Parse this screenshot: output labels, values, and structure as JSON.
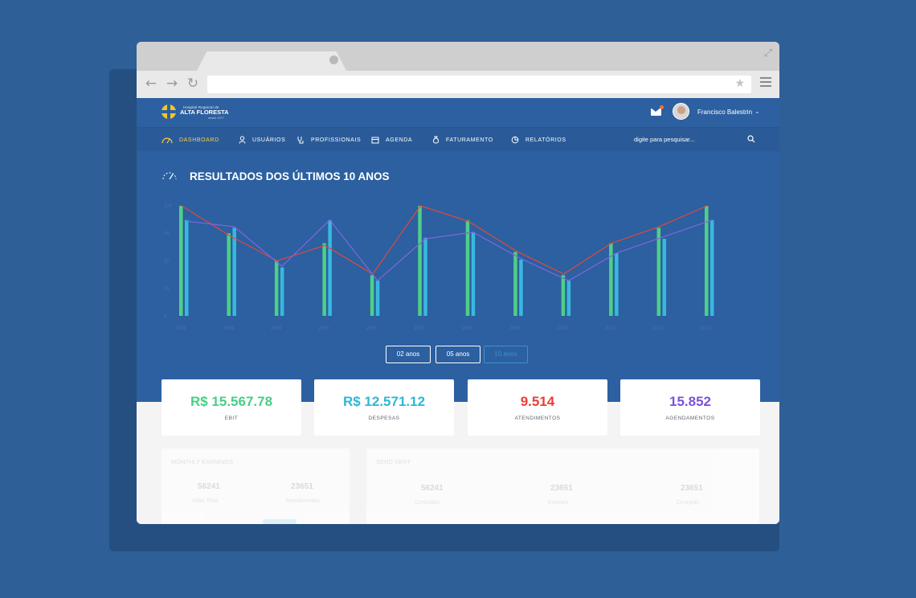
{
  "browser": {
    "back_icon": "arrow-left-icon",
    "forward_icon": "arrow-right-icon",
    "reload_icon": "refresh-icon"
  },
  "brand": {
    "small": "Hospital Regional de",
    "main": "ALTA FLORESTA",
    "sub": "desde 1977"
  },
  "user": {
    "name": "Francisco Balestrin",
    "mail_icon": "mail-icon"
  },
  "nav": {
    "items": [
      {
        "label": "DASHBOARD",
        "icon": "dashboard-icon"
      },
      {
        "label": "USUÁRIOS",
        "icon": "user-icon"
      },
      {
        "label": "PROFISSIONAIS",
        "icon": "stethoscope-icon"
      },
      {
        "label": "AGENDA",
        "icon": "calendar-icon"
      },
      {
        "label": "FATURAMENTO",
        "icon": "money-bag-icon"
      },
      {
        "label": "RELATÓRIOS",
        "icon": "pie-chart-icon"
      }
    ],
    "search_placeholder": "digite para pesquisar..."
  },
  "section": {
    "title": "RESULTADOS DOS ÚLTIMOS 10 ANOS"
  },
  "range": {
    "options": [
      "02 anos",
      "05 anos",
      "10 anos"
    ],
    "selected": "10 anos"
  },
  "chart_data": {
    "type": "bar",
    "title": "RESULTADOS DOS ÚLTIMOS 10 ANOS",
    "categories": [
      "2003",
      "2004",
      "2004",
      "2005",
      "2006",
      "2007",
      "2008",
      "2009",
      "2010",
      "2011",
      "2012",
      "2013"
    ],
    "ylim": [
      0,
      100
    ],
    "yticks": [
      0,
      25,
      50,
      75,
      100
    ],
    "grid": false,
    "series": [
      {
        "values": [
          100,
          75,
          50,
          66,
          37,
          100,
          87,
          58,
          37,
          66,
          80,
          100
        ],
        "color": "#4fcf86"
      },
      {
        "values": [
          87,
          80,
          44,
          87,
          32,
          71,
          76,
          51,
          32,
          57,
          70,
          87
        ],
        "color": "#39b8df"
      }
    ],
    "lines": [
      {
        "values": [
          100,
          73,
          50,
          64,
          38,
          100,
          86,
          59,
          38,
          66,
          81,
          100
        ],
        "color": "#e0483d"
      },
      {
        "values": [
          86,
          81,
          45,
          87,
          32,
          70,
          76,
          52,
          32,
          57,
          72,
          87
        ],
        "color": "#8364de"
      }
    ]
  },
  "stats": [
    {
      "value": "R$ 15.567.78",
      "label": "EBIT",
      "color": "#48cf86"
    },
    {
      "value": "R$ 12.571.12",
      "label": "DESPESAS",
      "color": "#2db8d6"
    },
    {
      "value": "9.514",
      "label": "ATENDIMENTOS",
      "color": "#ef3b31"
    },
    {
      "value": "15.852",
      "label": "AGENDAMENTOS",
      "color": "#7c53d9"
    }
  ],
  "panels": {
    "left": {
      "title": "MONTHLY EARNINGS",
      "values": [
        "56241",
        "23651"
      ],
      "labels": [
        "Valor Total",
        "Atendimentos"
      ]
    },
    "right": {
      "title": "SEND SENT",
      "values": [
        "56241",
        "23651",
        "23651"
      ],
      "labels": [
        "Consultas",
        "Exames",
        "Cirurgias"
      ]
    }
  }
}
